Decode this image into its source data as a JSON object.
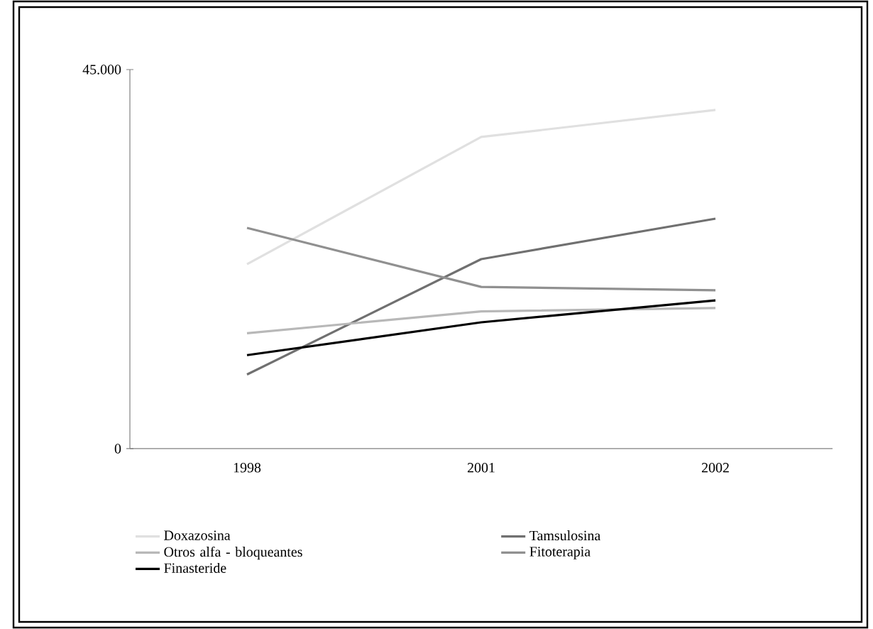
{
  "chart_data": {
    "type": "line",
    "categories": [
      "1998",
      "2001",
      "2002"
    ],
    "ylim": [
      0,
      45000
    ],
    "yticks": [
      {
        "value": 0,
        "label": "0"
      },
      {
        "value": 45000,
        "label": "45.000"
      }
    ],
    "legend": "bottom",
    "series": [
      {
        "name": "Doxazosina",
        "color": "#e0e0e0",
        "values": [
          21900,
          37000,
          40200
        ]
      },
      {
        "name": "Tamsulosina",
        "color": "#707070",
        "values": [
          8800,
          22500,
          27300
        ]
      },
      {
        "name": "Otros alfa - bloqueantes",
        "color": "#b8b8b8",
        "values": [
          13700,
          16300,
          16700
        ]
      },
      {
        "name": "Fitoterapia",
        "color": "#909090",
        "values": [
          26200,
          19200,
          18800
        ]
      },
      {
        "name": "Finasteride",
        "color": "#000000",
        "values": [
          11100,
          15000,
          17600
        ]
      }
    ]
  }
}
